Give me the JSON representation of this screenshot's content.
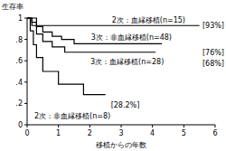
{
  "chart_data": {
    "type": "line",
    "line_style": "step",
    "y_label": "生存率",
    "x_label": "移植からの年数",
    "xlim": [
      0,
      6
    ],
    "xticks": [
      0,
      1,
      2,
      3,
      4,
      5,
      6
    ],
    "ylim": [
      0,
      1
    ],
    "yticks": [
      0,
      {
        "value": 0.2,
        "label": ".2"
      },
      {
        "value": 0.4,
        "label": ".4"
      },
      {
        "value": 0.6,
        "label": ".6"
      },
      {
        "value": 0.8,
        "label": ".8"
      },
      1
    ],
    "series": [
      {
        "name": "2次：血縁移植(n=15)",
        "color": "#000000",
        "end_label": "[93%]",
        "x": [
          0,
          0.3,
          5.5
        ],
        "values": [
          1,
          0.93,
          0.93
        ]
      },
      {
        "name": "3次：非血縁移植(n=48)",
        "color": "#000000",
        "end_label": "[76%]",
        "x": [
          0,
          0.15,
          0.3,
          0.5,
          0.8,
          1.1,
          1.5,
          4.3
        ],
        "values": [
          1,
          0.96,
          0.92,
          0.87,
          0.83,
          0.8,
          0.76,
          0.76
        ]
      },
      {
        "name": "3次：血縁移植(n=28)",
        "color": "#000000",
        "end_label": "[68%]",
        "x": [
          0,
          0.15,
          0.3,
          0.5,
          0.8,
          1.2,
          4.1
        ],
        "values": [
          1,
          0.93,
          0.85,
          0.78,
          0.73,
          0.68,
          0.68
        ]
      },
      {
        "name": "2次：非血縁移植(n=8)",
        "color": "#000000",
        "end_label": "[28.2%]",
        "x": [
          0,
          0.1,
          0.2,
          0.3,
          0.5,
          1.0,
          1.8,
          2.5
        ],
        "values": [
          1,
          0.88,
          0.75,
          0.63,
          0.5,
          0.38,
          0.282,
          0.282
        ]
      }
    ]
  }
}
